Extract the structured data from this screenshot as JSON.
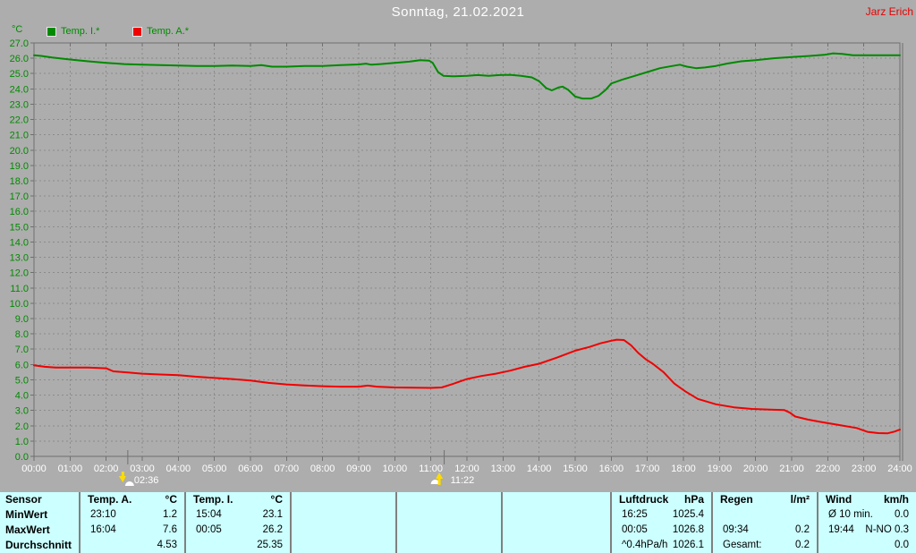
{
  "header": {
    "title": "Sonntag, 21.02.2021",
    "owner": "Jarz Erich"
  },
  "legend": {
    "unit": "°C",
    "series1": "Temp. I.*",
    "series2": "Temp. A.*"
  },
  "colors": {
    "background": "#ADADAD",
    "green": "#008A00",
    "red": "#F00000",
    "white": "#FFFFFF",
    "table_bg": "#CCFFFF",
    "grid": "#8B8B8B",
    "frame": "#6F6F6F",
    "moon_yellow": "#FFDC00"
  },
  "chart_data": {
    "type": "line",
    "title": "Sonntag, 21.02.2021",
    "ylabel": "°C",
    "ylim": [
      0,
      27
    ],
    "xlim_hours": [
      0,
      24
    ],
    "grid": "dashed",
    "legend_position": "top-left",
    "yticklabels": [
      "27.0",
      "26.0",
      "25.0",
      "24.0",
      "23.0",
      "22.0",
      "21.0",
      "20.0",
      "19.0",
      "18.0",
      "17.0",
      "16.0",
      "15.0",
      "14.0",
      "13.0",
      "12.0",
      "11.0",
      "10.0",
      "9.0",
      "8.0",
      "7.0",
      "6.0",
      "5.0",
      "4.0",
      "3.0",
      "2.0",
      "1.0",
      "0.0"
    ],
    "xticklabels": [
      "00:00",
      "01:00",
      "02:00",
      "03:00",
      "04:00",
      "05:00",
      "06:00",
      "07:00",
      "08:00",
      "09:00",
      "10:00",
      "11:00",
      "12:00",
      "13:00",
      "14:00",
      "15:00",
      "16:00",
      "17:00",
      "18:00",
      "19:00",
      "20:00",
      "21:00",
      "22:00",
      "23:00",
      "24:00"
    ],
    "series": [
      {
        "name": "Temp. I.*",
        "color": "#008A00",
        "points": [
          [
            0,
            26.2
          ],
          [
            0.2,
            26.15
          ],
          [
            0.5,
            26.05
          ],
          [
            1,
            25.92
          ],
          [
            1.5,
            25.8
          ],
          [
            2,
            25.7
          ],
          [
            2.5,
            25.62
          ],
          [
            3,
            25.58
          ],
          [
            3.5,
            25.55
          ],
          [
            4,
            25.52
          ],
          [
            4.5,
            25.5
          ],
          [
            5,
            25.5
          ],
          [
            5.5,
            25.52
          ],
          [
            6,
            25.5
          ],
          [
            6.3,
            25.55
          ],
          [
            6.6,
            25.45
          ],
          [
            7,
            25.45
          ],
          [
            7.5,
            25.5
          ],
          [
            8,
            25.5
          ],
          [
            8.5,
            25.55
          ],
          [
            9,
            25.6
          ],
          [
            9.2,
            25.65
          ],
          [
            9.35,
            25.58
          ],
          [
            9.6,
            25.62
          ],
          [
            10,
            25.7
          ],
          [
            10.4,
            25.78
          ],
          [
            10.7,
            25.88
          ],
          [
            10.95,
            25.85
          ],
          [
            11.05,
            25.7
          ],
          [
            11.2,
            25.1
          ],
          [
            11.35,
            24.85
          ],
          [
            11.6,
            24.82
          ],
          [
            12,
            24.85
          ],
          [
            12.3,
            24.9
          ],
          [
            12.6,
            24.85
          ],
          [
            12.9,
            24.9
          ],
          [
            13.2,
            24.92
          ],
          [
            13.5,
            24.85
          ],
          [
            13.8,
            24.75
          ],
          [
            14,
            24.5
          ],
          [
            14.2,
            24.05
          ],
          [
            14.35,
            23.9
          ],
          [
            14.55,
            24.1
          ],
          [
            14.65,
            24.15
          ],
          [
            14.8,
            23.95
          ],
          [
            15,
            23.5
          ],
          [
            15.2,
            23.37
          ],
          [
            15.45,
            23.37
          ],
          [
            15.65,
            23.55
          ],
          [
            15.85,
            23.95
          ],
          [
            16,
            24.35
          ],
          [
            16.3,
            24.6
          ],
          [
            16.65,
            24.85
          ],
          [
            17,
            25.1
          ],
          [
            17.35,
            25.35
          ],
          [
            17.7,
            25.5
          ],
          [
            17.9,
            25.58
          ],
          [
            18.1,
            25.45
          ],
          [
            18.35,
            25.35
          ],
          [
            18.6,
            25.4
          ],
          [
            18.9,
            25.5
          ],
          [
            19.2,
            25.65
          ],
          [
            19.6,
            25.8
          ],
          [
            20,
            25.88
          ],
          [
            20.5,
            26.0
          ],
          [
            21,
            26.08
          ],
          [
            21.5,
            26.15
          ],
          [
            21.9,
            26.22
          ],
          [
            22.15,
            26.32
          ],
          [
            22.4,
            26.28
          ],
          [
            22.7,
            26.2
          ],
          [
            23,
            26.2
          ],
          [
            23.5,
            26.2
          ],
          [
            24,
            26.2
          ]
        ]
      },
      {
        "name": "Temp. A.*",
        "color": "#F00000",
        "points": [
          [
            0,
            5.95
          ],
          [
            0.3,
            5.85
          ],
          [
            0.6,
            5.8
          ],
          [
            1,
            5.8
          ],
          [
            1.5,
            5.8
          ],
          [
            2,
            5.75
          ],
          [
            2.2,
            5.55
          ],
          [
            2.6,
            5.48
          ],
          [
            3,
            5.4
          ],
          [
            3.5,
            5.35
          ],
          [
            4,
            5.3
          ],
          [
            4.5,
            5.2
          ],
          [
            5,
            5.12
          ],
          [
            5.5,
            5.05
          ],
          [
            6,
            4.95
          ],
          [
            6.5,
            4.8
          ],
          [
            7,
            4.7
          ],
          [
            7.5,
            4.63
          ],
          [
            8,
            4.58
          ],
          [
            8.5,
            4.55
          ],
          [
            9,
            4.55
          ],
          [
            9.25,
            4.62
          ],
          [
            9.5,
            4.55
          ],
          [
            10,
            4.5
          ],
          [
            10.5,
            4.48
          ],
          [
            11,
            4.47
          ],
          [
            11.3,
            4.5
          ],
          [
            11.6,
            4.72
          ],
          [
            12,
            5.05
          ],
          [
            12.4,
            5.25
          ],
          [
            12.8,
            5.4
          ],
          [
            13.2,
            5.6
          ],
          [
            13.6,
            5.85
          ],
          [
            14,
            6.05
          ],
          [
            14.5,
            6.45
          ],
          [
            15,
            6.9
          ],
          [
            15.4,
            7.15
          ],
          [
            15.7,
            7.38
          ],
          [
            16,
            7.55
          ],
          [
            16.15,
            7.62
          ],
          [
            16.35,
            7.6
          ],
          [
            16.55,
            7.25
          ],
          [
            16.75,
            6.75
          ],
          [
            16.95,
            6.35
          ],
          [
            17.15,
            6.05
          ],
          [
            17.45,
            5.5
          ],
          [
            17.75,
            4.75
          ],
          [
            18.05,
            4.25
          ],
          [
            18.4,
            3.75
          ],
          [
            18.9,
            3.4
          ],
          [
            19.4,
            3.2
          ],
          [
            19.9,
            3.1
          ],
          [
            20.4,
            3.05
          ],
          [
            20.8,
            3.02
          ],
          [
            20.95,
            2.85
          ],
          [
            21.1,
            2.6
          ],
          [
            21.45,
            2.4
          ],
          [
            21.8,
            2.25
          ],
          [
            22.3,
            2.05
          ],
          [
            22.8,
            1.85
          ],
          [
            23.1,
            1.6
          ],
          [
            23.4,
            1.52
          ],
          [
            23.65,
            1.5
          ],
          [
            23.85,
            1.62
          ],
          [
            24,
            1.75
          ]
        ]
      }
    ],
    "events": [
      {
        "label": "02:36",
        "hour": 2.6,
        "icon": "moonset-icon"
      },
      {
        "label": "11:22",
        "hour": 11.37,
        "icon": "moonrise-icon"
      }
    ]
  },
  "table": {
    "row_labels": [
      "Sensor",
      "MinWert",
      "MaxWert",
      "Durchschnitt"
    ],
    "columns": [
      {
        "name": "Temp. A.",
        "unit": "°C",
        "rows": [
          [
            "23:10",
            "1.2"
          ],
          [
            "16:04",
            "7.6"
          ],
          [
            "",
            "4.53"
          ]
        ]
      },
      {
        "name": "Temp. I.",
        "unit": "°C",
        "rows": [
          [
            "15:04",
            "23.1"
          ],
          [
            "00:05",
            "26.2"
          ],
          [
            "",
            "25.35"
          ]
        ]
      },
      {
        "name": "",
        "unit": "",
        "rows": [
          [
            "",
            ""
          ],
          [
            "",
            ""
          ],
          [
            "",
            ""
          ]
        ]
      },
      {
        "name": "",
        "unit": "",
        "rows": [
          [
            "",
            ""
          ],
          [
            "",
            ""
          ],
          [
            "",
            ""
          ]
        ]
      },
      {
        "name": "",
        "unit": "",
        "rows": [
          [
            "",
            ""
          ],
          [
            "",
            ""
          ],
          [
            "",
            ""
          ]
        ]
      },
      {
        "name": "Luftdruck",
        "unit": "hPa",
        "rows": [
          [
            "16:25",
            "1025.4"
          ],
          [
            "00:05",
            "1026.8"
          ],
          [
            "^0.4hPa/h",
            "1026.1"
          ]
        ]
      },
      {
        "name": "Regen",
        "unit": "l/m²",
        "rows": [
          [
            "",
            ""
          ],
          [
            "09:34",
            "0.2"
          ],
          [
            "Gesamt:",
            "0.2"
          ]
        ]
      },
      {
        "name": "Wind",
        "unit": "km/h",
        "rows": [
          [
            "Ø 10 min.",
            "0.0"
          ],
          [
            "19:44",
            "N-NO 0.3"
          ],
          [
            "",
            "0.0"
          ]
        ]
      }
    ]
  }
}
